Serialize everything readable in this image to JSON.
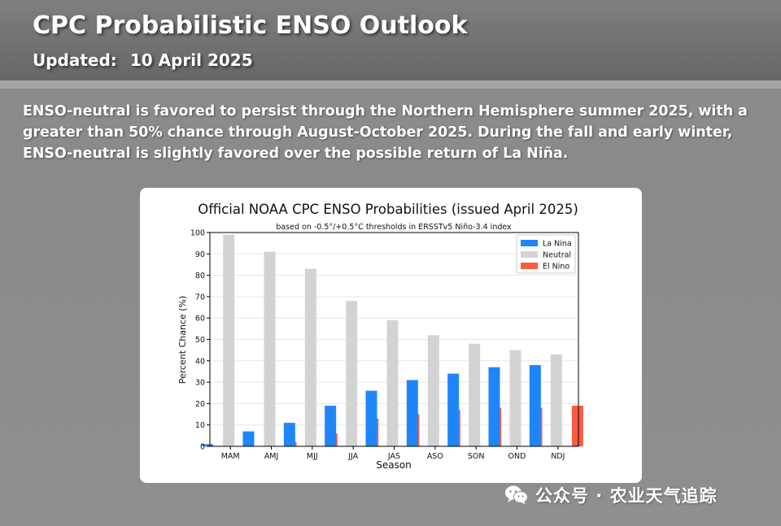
{
  "header": {
    "title": "CPC Probabilistic ENSO Outlook",
    "updated_label": "Updated:",
    "updated_date": "10 April 2025"
  },
  "summary": "ENSO-neutral is favored to persist through the Northern Hemisphere summer 2025, with a greater than 50% chance through August-October 2025.  During the fall and early winter, ENSO-neutral is slightly favored over the possible return of La Niña.",
  "colors": {
    "la_nina": "#1f86fa",
    "neutral": "#d3d3d3",
    "el_nino": "#fb5a44"
  },
  "watermark": {
    "text": "公众号 · 农业天气追踪",
    "icon": "wechat-icon"
  },
  "chart_data": {
    "type": "bar",
    "title": "Official NOAA CPC ENSO Probabilities (issued April 2025)",
    "subtitle": "based on -0.5°/+0.5°C thresholds in ERSSTv5 Niño-3.4 index",
    "xlabel": "Season",
    "ylabel": "Percent Chance (%)",
    "ylim": [
      0,
      100
    ],
    "yticks": [
      0,
      10,
      20,
      30,
      40,
      50,
      60,
      70,
      80,
      90,
      100
    ],
    "grid": true,
    "legend_position": "top-right",
    "categories": [
      "MAM",
      "AMJ",
      "MJJ",
      "JJA",
      "JAS",
      "ASO",
      "SON",
      "OND",
      "NDJ"
    ],
    "series": [
      {
        "name": "La Nina",
        "color": "#1f86fa",
        "values": [
          1,
          7,
          11,
          19,
          26,
          31,
          34,
          37,
          38
        ]
      },
      {
        "name": "Neutral",
        "color": "#d3d3d3",
        "values": [
          99,
          91,
          83,
          68,
          59,
          52,
          48,
          45,
          43
        ]
      },
      {
        "name": "El Nino",
        "color": "#fb5a44",
        "values": [
          0,
          2,
          6,
          13,
          15,
          17,
          18,
          18,
          19
        ]
      }
    ]
  }
}
